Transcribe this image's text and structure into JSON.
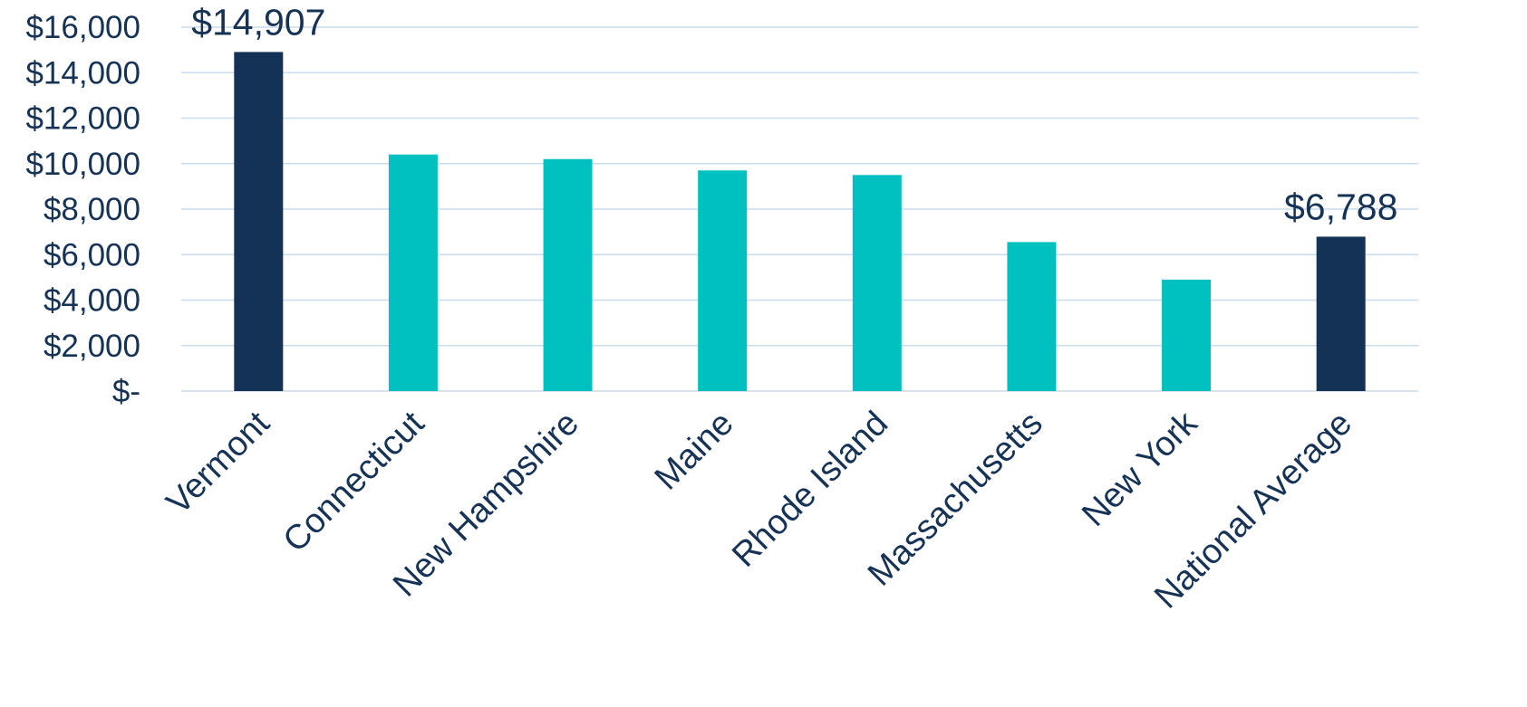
{
  "chart_data": {
    "type": "bar",
    "categories": [
      "Vermont",
      "Connecticut",
      "New Hampshire",
      "Maine",
      "Rhode Island",
      "Massachusetts",
      "New York",
      "National Average"
    ],
    "values": [
      14907,
      10400,
      10200,
      9700,
      9500,
      6550,
      4900,
      6788
    ],
    "highlighted": [
      "Vermont",
      "National Average"
    ],
    "data_labels": [
      {
        "category": "Vermont",
        "text": "$14,907"
      },
      {
        "category": "National Average",
        "text": "$6,788"
      }
    ],
    "y_ticks": [
      0,
      2000,
      4000,
      6000,
      8000,
      10000,
      12000,
      14000,
      16000
    ],
    "y_tick_labels": [
      "$-",
      "$2,000",
      "$4,000",
      "$6,000",
      "$8,000",
      "$10,000",
      "$12,000",
      "$14,000",
      "$16,000"
    ],
    "ylim": [
      0,
      16000
    ],
    "grid": true,
    "legend": "none",
    "colors": {
      "highlight": "#133255",
      "default": "#00c0c0",
      "gridline": "#c9dced",
      "text": "#163356"
    }
  }
}
